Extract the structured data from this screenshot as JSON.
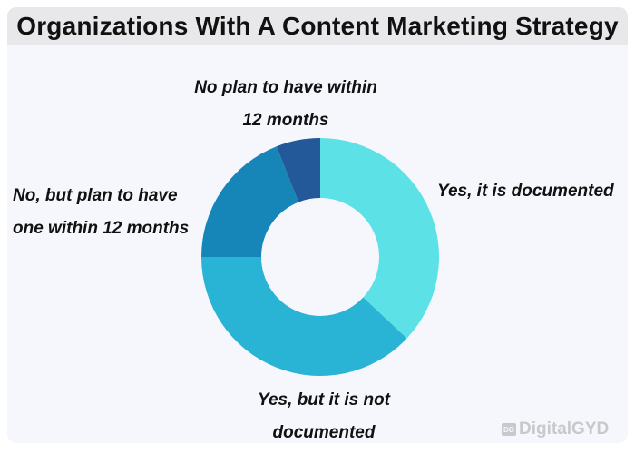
{
  "chart_data": {
    "type": "pie",
    "donut": true,
    "title": "Organizations With A Content Marketing Strategy",
    "categories": [
      "Yes, it is documented",
      "Yes, but it is not documented",
      "No, but plan to have one within 12 months",
      "No plan to have within 12 months"
    ],
    "values": [
      37,
      38,
      19,
      6
    ],
    "colors": [
      "#5ce1e6",
      "#29b3d4",
      "#1685b8",
      "#245999"
    ],
    "labels": [
      {
        "lines": [
          "Yes, it is documented"
        ]
      },
      {
        "lines": [
          "Yes, but it is not",
          "documented"
        ]
      },
      {
        "lines": [
          "No, but plan to have",
          "one within 12 months"
        ]
      },
      {
        "lines": [
          "No plan to have within",
          "12 months"
        ]
      }
    ],
    "legend": "none"
  },
  "watermark": {
    "icon": "dg-logo-icon",
    "text": "DigitalGYD"
  }
}
